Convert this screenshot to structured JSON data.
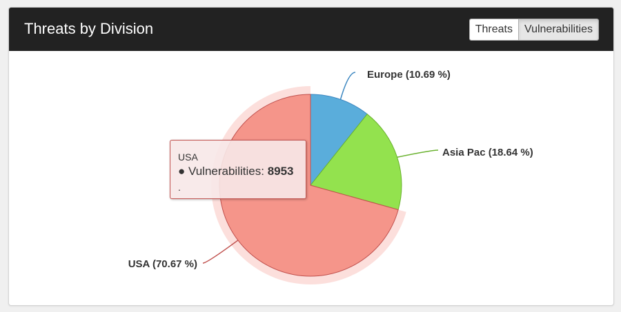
{
  "panel": {
    "title": "Threats by Division",
    "toggle": {
      "options": [
        {
          "label": "Threats",
          "active": false
        },
        {
          "label": "Vulnerabilities",
          "active": true
        }
      ]
    }
  },
  "tooltip": {
    "title": "USA",
    "series_label": "Vulnerabilities:",
    "value": "8953",
    "bullet": "●",
    "footer": "."
  },
  "chart_data": {
    "type": "pie",
    "title": "",
    "series_name": "Vulnerabilities",
    "slices": [
      {
        "name": "Europe",
        "percent": 10.69,
        "label": "Europe (10.69 %)",
        "color": "#5aaddb",
        "border": "#3b86c0"
      },
      {
        "name": "Asia Pac",
        "percent": 18.64,
        "label": "Asia Pac (18.64 %)",
        "color": "#93e24e",
        "border": "#6ab22f"
      },
      {
        "name": "USA",
        "percent": 70.67,
        "label": "USA (70.67 %)",
        "color": "#f5958a",
        "border": "#c0504d",
        "value": 8953,
        "hovered": true
      }
    ],
    "legend": "none"
  }
}
